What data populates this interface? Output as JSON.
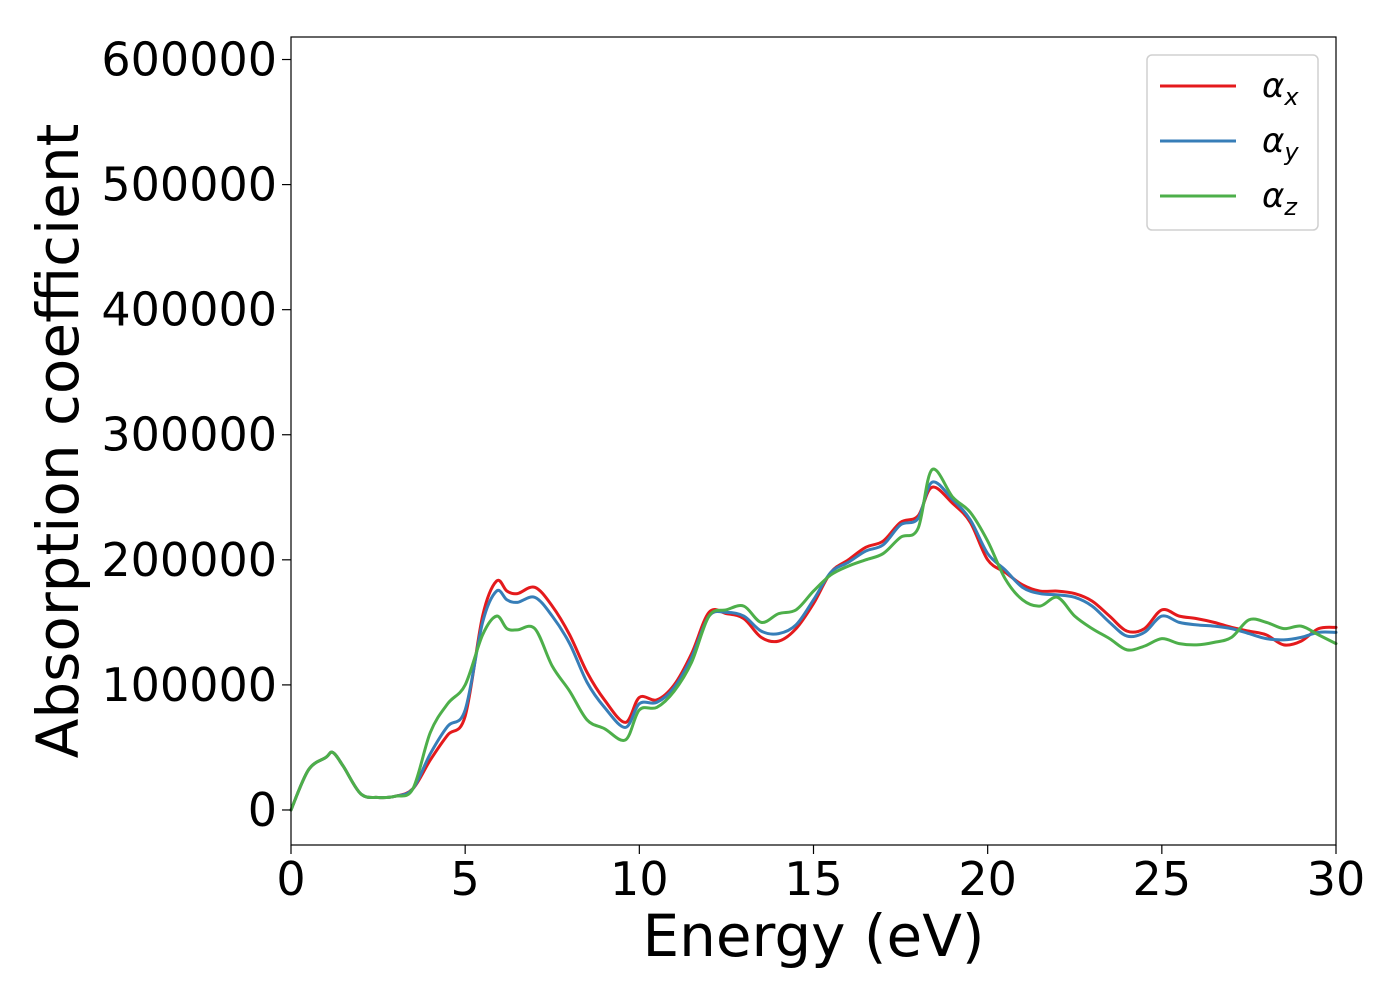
{
  "chart_data": {
    "type": "line",
    "xlabel": "Energy (eV)",
    "ylabel": "Absorption coefficient",
    "xlim": [
      0,
      30
    ],
    "ylim": [
      -28000,
      618000
    ],
    "xticks": [
      0,
      5,
      10,
      15,
      20,
      25,
      30
    ],
    "yticks": [
      0,
      100000,
      200000,
      300000,
      400000,
      500000,
      600000
    ],
    "grid": false,
    "legend_position": "top-right",
    "series": [
      {
        "name": "α",
        "subscript": "x",
        "color": "#e41a1c",
        "x": [
          0,
          0.5,
          1,
          1.2,
          1.5,
          2,
          2.5,
          3,
          3.5,
          4,
          4.5,
          5,
          5.5,
          5.9,
          6.2,
          6.5,
          7,
          7.5,
          8,
          8.5,
          9,
          9.6,
          10,
          10.5,
          11,
          11.5,
          12,
          12.5,
          13,
          13.5,
          14,
          14.5,
          15,
          15.5,
          16,
          16.5,
          17,
          17.5,
          18,
          18.4,
          19,
          19.5,
          20,
          20.5,
          21,
          21.5,
          22,
          22.5,
          23,
          23.5,
          24,
          24.5,
          25,
          25.5,
          26,
          26.5,
          27,
          27.5,
          28,
          28.5,
          29,
          29.5,
          30
        ],
        "y": [
          0,
          32000,
          42000,
          46000,
          35000,
          13000,
          10000,
          11000,
          17000,
          40000,
          60000,
          75000,
          155000,
          183000,
          175000,
          173000,
          178000,
          163000,
          140000,
          110000,
          88000,
          70000,
          90000,
          88000,
          100000,
          125000,
          158000,
          157000,
          153000,
          138000,
          135000,
          145000,
          165000,
          190000,
          200000,
          210000,
          215000,
          230000,
          235000,
          258000,
          245000,
          230000,
          200000,
          190000,
          180000,
          175000,
          175000,
          173000,
          167000,
          155000,
          143000,
          145000,
          160000,
          155000,
          153000,
          150000,
          146000,
          143000,
          140000,
          132000,
          135000,
          145000,
          146000
        ]
      },
      {
        "name": "α",
        "subscript": "y",
        "color": "#377eb8",
        "x": [
          0,
          0.5,
          1,
          1.2,
          1.5,
          2,
          2.5,
          3,
          3.5,
          4,
          4.5,
          5,
          5.5,
          5.9,
          6.2,
          6.5,
          7,
          7.5,
          8,
          8.5,
          9,
          9.6,
          10,
          10.5,
          11,
          11.5,
          12,
          12.5,
          13,
          13.5,
          14,
          14.5,
          15,
          15.5,
          16,
          16.5,
          17,
          17.5,
          18,
          18.4,
          19,
          19.5,
          20,
          20.5,
          21,
          21.5,
          22,
          22.5,
          23,
          23.5,
          24,
          24.5,
          25,
          25.5,
          26,
          26.5,
          27,
          27.5,
          28,
          28.5,
          29,
          29.5,
          30
        ],
        "y": [
          0,
          32000,
          42000,
          46000,
          35000,
          13000,
          10000,
          11000,
          17000,
          45000,
          67000,
          80000,
          150000,
          175000,
          168000,
          166000,
          170000,
          155000,
          133000,
          102000,
          82000,
          66000,
          85000,
          86000,
          98000,
          122000,
          155000,
          158000,
          155000,
          143000,
          141000,
          148000,
          168000,
          190000,
          198000,
          207000,
          212000,
          228000,
          233000,
          262000,
          248000,
          232000,
          205000,
          192000,
          178000,
          173000,
          172000,
          170000,
          163000,
          150000,
          139000,
          142000,
          155000,
          150000,
          148000,
          147000,
          145000,
          141000,
          137000,
          136000,
          138000,
          142000,
          142000
        ]
      },
      {
        "name": "α",
        "subscript": "z",
        "color": "#4daf4a",
        "x": [
          0,
          0.5,
          1,
          1.2,
          1.5,
          2,
          2.5,
          3,
          3.5,
          4,
          4.5,
          5,
          5.5,
          5.9,
          6.2,
          6.5,
          7,
          7.5,
          8,
          8.5,
          9,
          9.6,
          10,
          10.5,
          11,
          11.5,
          12,
          12.5,
          13,
          13.5,
          14,
          14.5,
          15,
          15.5,
          16,
          16.5,
          17,
          17.5,
          18,
          18.4,
          19,
          19.5,
          20,
          20.5,
          21,
          21.5,
          22,
          22.5,
          23,
          23.5,
          24,
          24.5,
          25,
          25.5,
          26,
          26.5,
          27,
          27.5,
          28,
          28.5,
          29,
          29.5,
          30
        ],
        "y": [
          0,
          32000,
          42000,
          46000,
          35000,
          13000,
          10000,
          11000,
          17000,
          62000,
          85000,
          100000,
          140000,
          155000,
          145000,
          144000,
          145000,
          115000,
          95000,
          72000,
          65000,
          56000,
          80000,
          82000,
          95000,
          118000,
          155000,
          160000,
          163000,
          150000,
          157000,
          160000,
          175000,
          188000,
          195000,
          200000,
          205000,
          218000,
          225000,
          272000,
          250000,
          238000,
          215000,
          185000,
          168000,
          163000,
          170000,
          155000,
          145000,
          137000,
          128000,
          131000,
          137000,
          133000,
          132000,
          134000,
          138000,
          152000,
          150000,
          145000,
          147000,
          140000,
          133000
        ]
      }
    ]
  }
}
